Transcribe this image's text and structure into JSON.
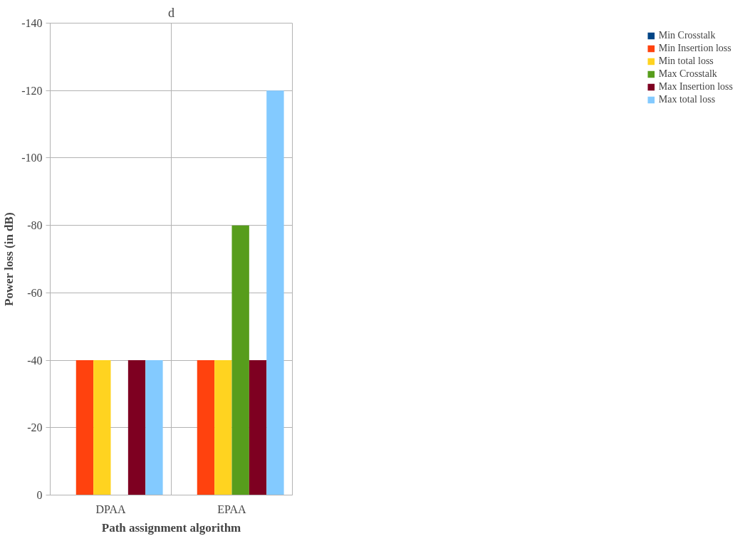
{
  "chart_data": {
    "type": "bar",
    "title": "d",
    "xlabel": "Path assignment algorithm",
    "ylabel": "Power loss (in dB)",
    "categories": [
      "DPAA",
      "EPAA"
    ],
    "series": [
      {
        "name": "Min Crosstalk",
        "color": "#004586",
        "values": [
          0,
          0
        ]
      },
      {
        "name": "Min Insertion loss",
        "color": "#ff420e",
        "values": [
          -40,
          -40
        ]
      },
      {
        "name": "Min total loss",
        "color": "#ffd320",
        "values": [
          -40,
          -40
        ]
      },
      {
        "name": "Max Crosstalk",
        "color": "#579d1c",
        "values": [
          0,
          -80
        ]
      },
      {
        "name": "Max Insertion loss",
        "color": "#7e0021",
        "values": [
          -40,
          -40
        ]
      },
      {
        "name": "Max total loss",
        "color": "#83caff",
        "values": [
          -40,
          -120
        ]
      }
    ],
    "ylim": [
      0,
      -140
    ],
    "yticks": [
      0,
      -20,
      -40,
      -60,
      -80,
      -100,
      -120,
      -140
    ],
    "grid": true,
    "legend": "right"
  }
}
